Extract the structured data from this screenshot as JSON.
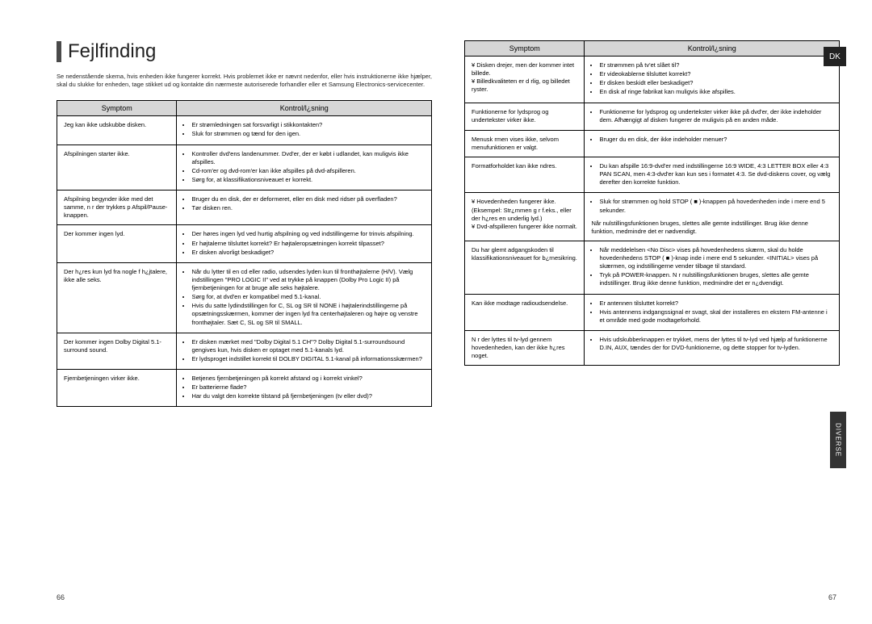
{
  "locale_badge": "DK",
  "side_tab": "DIVERSE",
  "page_left_num": "66",
  "page_right_num": "67",
  "title": "Fejlfinding",
  "intro": "Se nedenstående skema, hvis enheden ikke fungerer korrekt. Hvis problemet ikke er nævnt nedenfor, eller hvis instruktionerne ikke hjælper, skal du slukke for enheden, tage stikket ud og kontakte din nærmeste autoriserede forhandler eller et Samsung Electronics-servicecenter.",
  "col_symptom": "Symptom",
  "col_solution": "Kontrol/l¿sning",
  "left_rows": [
    {
      "symptom": "Jeg kan ikke udskubbe disken.",
      "solutions": [
        "Er strømledningen sat forsvarligt i stikkontakten?",
        "Sluk for strømmen og tænd for den igen."
      ]
    },
    {
      "symptom": "Afspilningen starter ikke.",
      "solutions": [
        "Kontroller dvd'ens landenummer. Dvd'er, der er købt i udlandet, kan muligvis ikke afspilles.",
        "Cd-rom'er og dvd-rom'er kan ikke afspilles på dvd-afspilleren.",
        "Sørg for, at klassifikationsniveauet er korrekt."
      ]
    },
    {
      "symptom": "Afspilning begynder ikke med det samme, n r der trykkes p Afspil/Pause-knappen.",
      "solutions": [
        "Bruger du en disk, der er deformeret, eller en disk med ridser på overfladen?",
        "Tør disken ren."
      ]
    },
    {
      "symptom": "Der kommer ingen lyd.",
      "solutions": [
        "Der høres ingen lyd ved hurtig afspilning og ved indstillingerne for trinvis afspilning.",
        "Er højtalerne tilsluttet korrekt? Er højtaleropsætningen korrekt tilpasset?",
        "Er disken alvorligt beskadiget?"
      ]
    },
    {
      "symptom": "Der h¿res kun lyd fra nogle f h¿jtalere, ikke alle seks.",
      "solutions": [
        "Når du lytter til en cd eller radio, udsendes lyden kun til fronthøjtalerne (H/V). Vælg indstillingen \"PRO LOGIC II\" ved at trykke på knappen (Dolby Pro Logic II) på fjernbetjeningen for at bruge alle seks højtalere.",
        "Sørg for, at dvd'en er kompatibel med 5.1-kanal.",
        "Hvis du satte lydindstillingen for C, SL og SR til NONE i højtalerindstillingerne på opsætningsskærmen, kommer der ingen lyd fra centerhøjtaleren og højre og venstre fronthøjtaler. Sæt C, SL og SR til SMALL."
      ]
    },
    {
      "symptom": "Der kommer ingen Dolby Digital 5.1-surround sound.",
      "solutions": [
        "Er disken mærket med \"Dolby Digital 5.1 CH\"?  Dolby Digital 5.1-surroundsound gengives kun, hvis disken er optaget med 5.1-kanals lyd.",
        "Er lydsproget indstillet korrekt til DOLBY DIGITAL 5.1-kanal på informationsskærmen?"
      ]
    },
    {
      "symptom": "Fjernbetjeningen virker ikke.",
      "solutions": [
        "Betjenes fjernbetjeningen på korrekt afstand og i korrekt vinkel?",
        "Er batterierne flade?",
        "Har du valgt den korrekte tilstand på fjernbetjeningen (tv eller dvd)?"
      ]
    }
  ],
  "right_rows": [
    {
      "symptom": "¥ Disken drejer, men der kommer intet billede.\n¥ Billedkvaliteten er d rlig, og billedet ryster.",
      "solutions": [
        "Er strømmen på tv'et slået til?",
        "Er videokablerne tilsluttet korrekt?",
        "Er disken beskidt eller beskadiget?",
        "En disk af ringe fabrikat kan muligvis ikke afspilles."
      ]
    },
    {
      "symptom": "Funktionerne for lydsprog og undertekster virker ikke.",
      "solutions": [
        "Funktionerne for lydsprog og undertekster virker ikke på dvd'er, der ikke indeholder dem. Afhængigt af disken fungerer de muligvis på en anden måde."
      ]
    },
    {
      "symptom": "Menusk rmen vises ikke, selvom menufunktionen er valgt.",
      "solutions": [
        "Bruger du en disk, der ikke indeholder menuer?"
      ]
    },
    {
      "symptom": "Formatforholdet kan ikke ndres.",
      "solutions": [
        "Du kan afspille 16:9-dvd'er med indstillingerne 16:9 WIDE, 4:3 LETTER BOX eller 4:3 PAN SCAN, men 4:3-dvd'er kan kun ses i formatet 4:3. Se dvd-diskens cover, og vælg derefter den korrekte funktion."
      ]
    },
    {
      "symptom": "¥ Hovedenheden fungerer ikke. (Eksempel: Str¿mmen g r f.eks., eller der h¿res en underlig lyd.)\n¥ Dvd-afspilleren fungerer ikke normalt.",
      "solutions": [
        "Sluk for strømmen og hold STOP ( ■ )-knappen på hovedenheden inde i mere end 5 sekunder."
      ],
      "extra": "Når nulstillingsfunktionen bruges, slettes alle gemte indstillinger. Brug ikke denne funktion, medmindre det er nødvendigt."
    },
    {
      "symptom": "Du har glemt adgangskoden til klassifikationsniveauet for b¿rnesikring.",
      "solutions": [
        "Når meddelelsen <No Disc> vises på hovedenhedens skærm, skal du holde hovedenhedens STOP ( ■ )-knap inde i mere end 5 sekunder. <INITIAL> vises på skærmen, og indstillingerne vender tilbage til standard.",
        "Tryk på POWER-knappen. N r nulstillingsfunktionen bruges, slettes alle gemte indstillinger. Brug ikke denne funktion, medmindre det er n¿dvendigt."
      ]
    },
    {
      "symptom": "Kan ikke modtage radioudsendelse.",
      "solutions": [
        "Er antennen tilsluttet korrekt?",
        "Hvis antennens indgangssignal er svagt, skal der installeres en ekstern FM-antenne i et område med gode modtageforhold."
      ]
    },
    {
      "symptom": "N r der lyttes til tv-lyd gennem hovedenheden, kan der ikke h¿res noget.",
      "solutions": [
        "Hvis udskubberknappen er trykket, mens der lyttes til tv-lyd ved hjælp af funktionerne D.IN, AUX, tændes der for DVD-funktionerne, og dette stopper for tv-lyden."
      ]
    }
  ]
}
